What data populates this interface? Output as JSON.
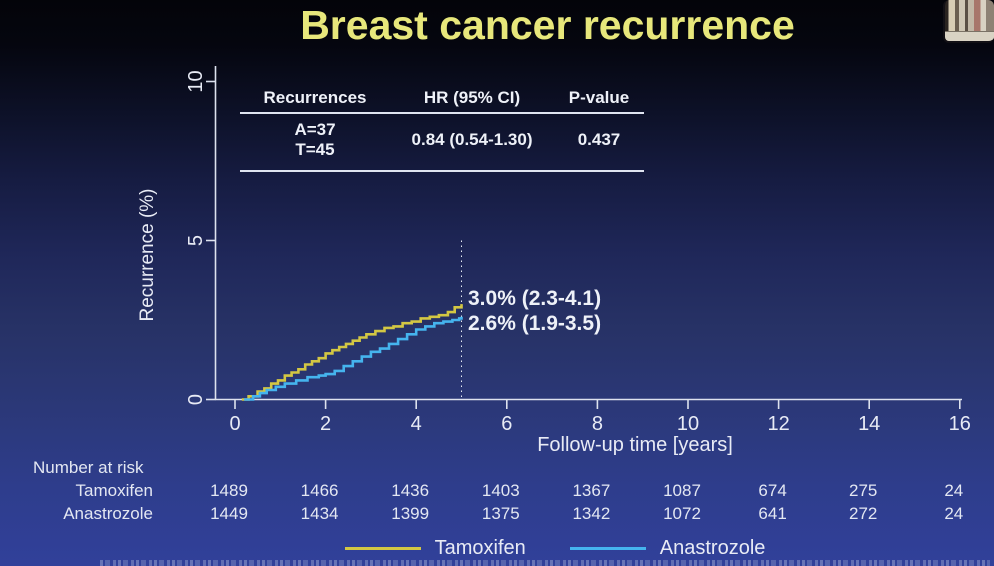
{
  "slide": {
    "title": "Breast cancer recurrence"
  },
  "stats_table": {
    "headers": [
      "Recurrences",
      "HR (95% CI)",
      "P-value"
    ],
    "row": {
      "recurrences": [
        "A=37",
        "T=45"
      ],
      "hr": "0.84 (0.54-1.30)",
      "p_value": "0.437"
    }
  },
  "annotations": [
    {
      "text": "3.0% (2.3-4.1)"
    },
    {
      "text": "2.6% (1.9-3.5)"
    }
  ],
  "chart_data": {
    "type": "line",
    "subtype": "kaplan-meier-step",
    "title": "Breast cancer recurrence",
    "xlabel": "Follow-up time [years]",
    "ylabel": "Recurrence (%)",
    "xlim": [
      0,
      16
    ],
    "ylim": [
      0,
      10
    ],
    "x_ticks": [
      0,
      2,
      4,
      6,
      8,
      10,
      12,
      14,
      16
    ],
    "y_ticks": [
      0,
      5,
      10
    ],
    "grid": false,
    "legend_position": "bottom",
    "reference_line": {
      "x": 5,
      "style": "dotted",
      "color": "#e8ecf5"
    },
    "series": [
      {
        "name": "Tamoxifen",
        "color": "#d3c743",
        "estimate_at_5y": "3.0% (2.3-4.1)",
        "points": [
          [
            0.15,
            0
          ],
          [
            0.3,
            0.1
          ],
          [
            0.5,
            0.25
          ],
          [
            0.65,
            0.35
          ],
          [
            0.8,
            0.5
          ],
          [
            0.95,
            0.6
          ],
          [
            1.1,
            0.75
          ],
          [
            1.25,
            0.85
          ],
          [
            1.4,
            0.95
          ],
          [
            1.55,
            1.1
          ],
          [
            1.7,
            1.2
          ],
          [
            1.85,
            1.3
          ],
          [
            2.0,
            1.45
          ],
          [
            2.15,
            1.55
          ],
          [
            2.3,
            1.65
          ],
          [
            2.45,
            1.75
          ],
          [
            2.6,
            1.85
          ],
          [
            2.75,
            1.95
          ],
          [
            2.9,
            2.05
          ],
          [
            3.1,
            2.15
          ],
          [
            3.3,
            2.25
          ],
          [
            3.5,
            2.3
          ],
          [
            3.7,
            2.4
          ],
          [
            3.9,
            2.45
          ],
          [
            4.1,
            2.55
          ],
          [
            4.3,
            2.6
          ],
          [
            4.5,
            2.65
          ],
          [
            4.7,
            2.75
          ],
          [
            4.85,
            2.9
          ],
          [
            5.0,
            3.0
          ]
        ]
      },
      {
        "name": "Anastrozole",
        "color": "#45b4ee",
        "estimate_at_5y": "2.6% (1.9-3.5)",
        "points": [
          [
            0.2,
            0
          ],
          [
            0.4,
            0.1
          ],
          [
            0.55,
            0.2
          ],
          [
            0.7,
            0.3
          ],
          [
            0.9,
            0.4
          ],
          [
            1.1,
            0.5
          ],
          [
            1.35,
            0.6
          ],
          [
            1.6,
            0.7
          ],
          [
            1.85,
            0.75
          ],
          [
            2.0,
            0.8
          ],
          [
            2.2,
            0.9
          ],
          [
            2.4,
            1.05
          ],
          [
            2.6,
            1.2
          ],
          [
            2.8,
            1.35
          ],
          [
            3.0,
            1.5
          ],
          [
            3.2,
            1.6
          ],
          [
            3.4,
            1.75
          ],
          [
            3.6,
            1.9
          ],
          [
            3.8,
            2.05
          ],
          [
            4.0,
            2.2
          ],
          [
            4.2,
            2.3
          ],
          [
            4.4,
            2.4
          ],
          [
            4.6,
            2.45
          ],
          [
            4.8,
            2.5
          ],
          [
            4.95,
            2.55
          ],
          [
            5.0,
            2.6
          ]
        ]
      }
    ]
  },
  "risk_table": {
    "title": "Number at risk",
    "time_points": [
      0,
      2,
      4,
      6,
      8,
      10,
      12,
      14,
      16
    ],
    "rows": [
      {
        "label": "Tamoxifen",
        "values": [
          "1489",
          "1466",
          "1436",
          "1403",
          "1367",
          "1087",
          "674",
          "275",
          "24"
        ]
      },
      {
        "label": "Anastrozole",
        "values": [
          "1449",
          "1434",
          "1399",
          "1375",
          "1342",
          "1072",
          "641",
          "272",
          "24"
        ]
      }
    ]
  },
  "legend": {
    "items": [
      {
        "label": "Tamoxifen",
        "color": "#d3c743"
      },
      {
        "label": "Anastrozole",
        "color": "#45b4ee"
      }
    ]
  }
}
